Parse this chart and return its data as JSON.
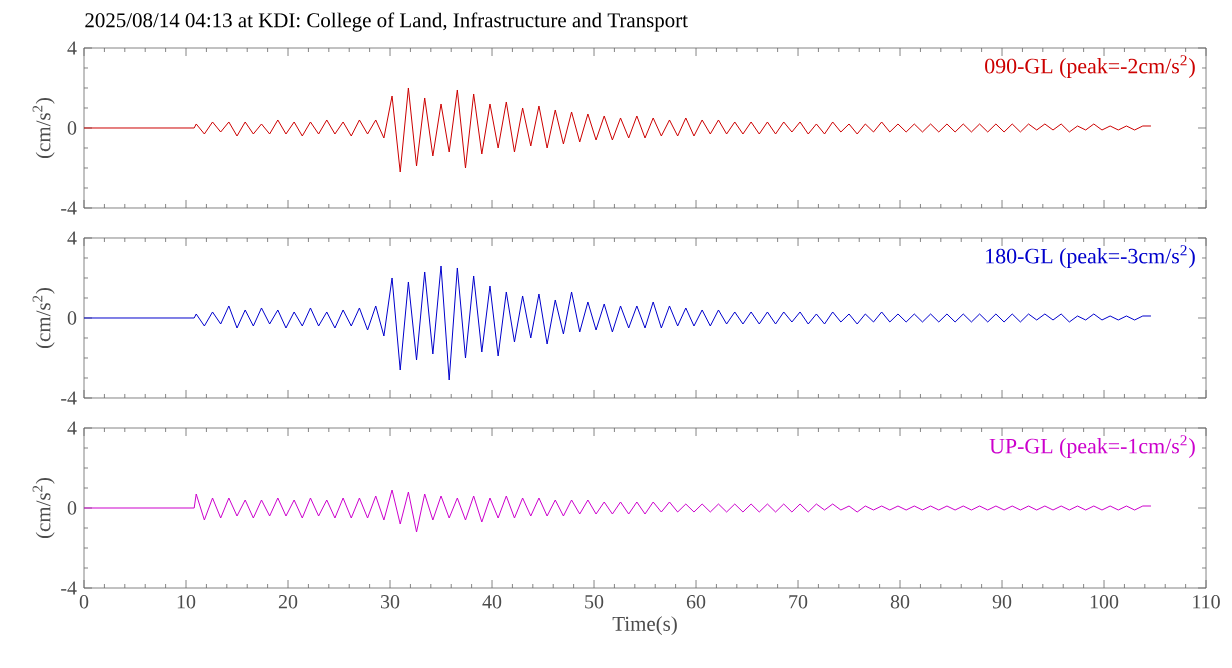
{
  "chart_data": [
    {
      "type": "line",
      "title": "2025/08/14 04:13 at KDI: College of Land, Infrastructure and Transport",
      "ylabel": "(cm/s$^{2}$)",
      "tick_labels": "y",
      "xlim": [
        0,
        110
      ],
      "xticks": [
        0,
        10,
        20,
        30,
        40,
        50,
        60,
        70,
        80,
        90,
        100,
        110
      ],
      "ylim": [
        -4,
        4
      ],
      "yticks": [
        -4,
        0,
        4
      ],
      "x": [
        0,
        10.8,
        11,
        11.8,
        12.6,
        13.4,
        14.2,
        15,
        15.8,
        16.6,
        17.4,
        18.2,
        19,
        19.8,
        20.6,
        21.4,
        22.2,
        23,
        23.8,
        24.6,
        25.4,
        26.2,
        27,
        27.8,
        28.6,
        29.4,
        30.2,
        31,
        31.8,
        32.6,
        33.4,
        34.2,
        35,
        35.8,
        36.6,
        37.4,
        38.2,
        39,
        39.8,
        40.6,
        41.4,
        42.2,
        43,
        43.8,
        44.6,
        45.4,
        46.2,
        47,
        47.8,
        48.6,
        49.4,
        50.2,
        51,
        51.8,
        52.6,
        53.4,
        54.2,
        55,
        55.8,
        56.6,
        57.4,
        58.2,
        59,
        59.8,
        60.6,
        61.4,
        62.2,
        63,
        63.8,
        64.6,
        65.4,
        66.2,
        67,
        67.8,
        68.6,
        69.4,
        70.2,
        71,
        71.8,
        72.6,
        73.4,
        74.2,
        75,
        75.8,
        76.6,
        77.4,
        78.2,
        79,
        79.8,
        80.6,
        81.4,
        82.2,
        83,
        83.8,
        84.6,
        85.4,
        86.2,
        87,
        87.8,
        88.6,
        89.4,
        90.2,
        91,
        91.8,
        92.6,
        93.4,
        94.2,
        95,
        95.8,
        96.6,
        97.4,
        98.2,
        99,
        99.8,
        100.6,
        101.4,
        102.2,
        103,
        103.8,
        104.6
      ],
      "series": [
        {
          "name": "090-GL (peak=-2cm/s$^{2}$)",
          "color": "#cc0000",
          "values": [
            0,
            0,
            0.2,
            -0.3,
            0.3,
            -0.2,
            0.3,
            -0.4,
            0.3,
            -0.3,
            0.2,
            -0.3,
            0.4,
            -0.3,
            0.3,
            -0.4,
            0.3,
            -0.3,
            0.4,
            -0.3,
            0.3,
            -0.4,
            0.4,
            -0.3,
            0.4,
            -0.5,
            1.6,
            -2.2,
            2.0,
            -1.9,
            1.5,
            -1.4,
            1.2,
            -1.2,
            1.9,
            -2.0,
            1.7,
            -1.3,
            1.2,
            -1.0,
            1.3,
            -1.2,
            1.0,
            -0.9,
            1.1,
            -1.0,
            0.9,
            -0.8,
            0.8,
            -0.7,
            0.7,
            -0.6,
            0.6,
            -0.6,
            0.5,
            -0.5,
            0.6,
            -0.5,
            0.5,
            -0.4,
            0.4,
            -0.4,
            0.5,
            -0.4,
            0.4,
            -0.3,
            0.4,
            -0.3,
            0.3,
            -0.3,
            0.3,
            -0.3,
            0.3,
            -0.3,
            0.3,
            -0.2,
            0.3,
            -0.3,
            0.2,
            -0.3,
            0.3,
            -0.2,
            0.2,
            -0.3,
            0.2,
            -0.2,
            0.3,
            -0.2,
            0.2,
            -0.2,
            0.2,
            -0.2,
            0.2,
            -0.2,
            0.2,
            -0.2,
            0.2,
            -0.2,
            0.2,
            -0.2,
            0.2,
            -0.2,
            0.2,
            -0.2,
            0.2,
            -0.1,
            0.2,
            -0.1,
            0.2,
            -0.2,
            0.1,
            -0.1,
            0.2,
            -0.1,
            0.1,
            -0.1,
            0.1,
            -0.1,
            0.1,
            0.1
          ]
        }
      ]
    },
    {
      "type": "line",
      "ylabel": "(cm/s$^{2}$)",
      "tick_labels": "y",
      "xlim": [
        0,
        110
      ],
      "xticks": [
        0,
        10,
        20,
        30,
        40,
        50,
        60,
        70,
        80,
        90,
        100,
        110
      ],
      "ylim": [
        -4,
        4
      ],
      "yticks": [
        -4,
        0,
        4
      ],
      "x": [
        0,
        10.8,
        11,
        11.8,
        12.6,
        13.4,
        14.2,
        15,
        15.8,
        16.6,
        17.4,
        18.2,
        19,
        19.8,
        20.6,
        21.4,
        22.2,
        23,
        23.8,
        24.6,
        25.4,
        26.2,
        27,
        27.8,
        28.6,
        29.4,
        30.2,
        31,
        31.8,
        32.6,
        33.4,
        34.2,
        35,
        35.8,
        36.6,
        37.4,
        38.2,
        39,
        39.8,
        40.6,
        41.4,
        42.2,
        43,
        43.8,
        44.6,
        45.4,
        46.2,
        47,
        47.8,
        48.6,
        49.4,
        50.2,
        51,
        51.8,
        52.6,
        53.4,
        54.2,
        55,
        55.8,
        56.6,
        57.4,
        58.2,
        59,
        59.8,
        60.6,
        61.4,
        62.2,
        63,
        63.8,
        64.6,
        65.4,
        66.2,
        67,
        67.8,
        68.6,
        69.4,
        70.2,
        71,
        71.8,
        72.6,
        73.4,
        74.2,
        75,
        75.8,
        76.6,
        77.4,
        78.2,
        79,
        79.8,
        80.6,
        81.4,
        82.2,
        83,
        83.8,
        84.6,
        85.4,
        86.2,
        87,
        87.8,
        88.6,
        89.4,
        90.2,
        91,
        91.8,
        92.6,
        93.4,
        94.2,
        95,
        95.8,
        96.6,
        97.4,
        98.2,
        99,
        99.8,
        100.6,
        101.4,
        102.2,
        103,
        103.8,
        104.6
      ],
      "series": [
        {
          "name": "180-GL (peak=-3cm/s$^{2}$)",
          "color": "#0000cc",
          "values": [
            0,
            0,
            0.2,
            -0.4,
            0.3,
            -0.3,
            0.6,
            -0.5,
            0.4,
            -0.4,
            0.5,
            -0.3,
            0.4,
            -0.5,
            0.3,
            -0.4,
            0.5,
            -0.4,
            0.3,
            -0.5,
            0.4,
            -0.4,
            0.5,
            -0.6,
            0.6,
            -0.9,
            2.0,
            -2.6,
            1.8,
            -2.1,
            2.3,
            -1.8,
            2.6,
            -3.1,
            2.5,
            -2.0,
            2.1,
            -1.7,
            1.6,
            -1.9,
            1.3,
            -1.2,
            1.1,
            -1.0,
            1.2,
            -1.3,
            0.9,
            -0.8,
            1.3,
            -0.7,
            0.8,
            -0.6,
            0.7,
            -0.7,
            0.6,
            -0.5,
            0.6,
            -0.5,
            0.8,
            -0.5,
            0.6,
            -0.4,
            0.5,
            -0.4,
            0.4,
            -0.4,
            0.4,
            -0.3,
            0.3,
            -0.3,
            0.3,
            -0.3,
            0.3,
            -0.3,
            0.3,
            -0.2,
            0.3,
            -0.3,
            0.2,
            -0.3,
            0.3,
            -0.2,
            0.2,
            -0.3,
            0.2,
            -0.2,
            0.3,
            -0.2,
            0.2,
            -0.2,
            0.2,
            -0.2,
            0.2,
            -0.2,
            0.2,
            -0.2,
            0.2,
            -0.2,
            0.2,
            -0.2,
            0.2,
            -0.2,
            0.2,
            -0.2,
            0.2,
            -0.1,
            0.2,
            -0.1,
            0.2,
            -0.2,
            0.1,
            -0.1,
            0.2,
            -0.1,
            0.1,
            -0.1,
            0.1,
            -0.1,
            0.1,
            0.1
          ]
        }
      ]
    },
    {
      "type": "line",
      "xlabel": "Time(s)",
      "ylabel": "(cm/s$^{2}$)",
      "xlim": [
        0,
        110
      ],
      "xticks": [
        0,
        10,
        20,
        30,
        40,
        50,
        60,
        70,
        80,
        90,
        100,
        110
      ],
      "ylim": [
        -4,
        4
      ],
      "yticks": [
        -4,
        0,
        4
      ],
      "x": [
        0,
        10.8,
        11,
        11.8,
        12.6,
        13.4,
        14.2,
        15,
        15.8,
        16.6,
        17.4,
        18.2,
        19,
        19.8,
        20.6,
        21.4,
        22.2,
        23,
        23.8,
        24.6,
        25.4,
        26.2,
        27,
        27.8,
        28.6,
        29.4,
        30.2,
        31,
        31.8,
        32.6,
        33.4,
        34.2,
        35,
        35.8,
        36.6,
        37.4,
        38.2,
        39,
        39.8,
        40.6,
        41.4,
        42.2,
        43,
        43.8,
        44.6,
        45.4,
        46.2,
        47,
        47.8,
        48.6,
        49.4,
        50.2,
        51,
        51.8,
        52.6,
        53.4,
        54.2,
        55,
        55.8,
        56.6,
        57.4,
        58.2,
        59,
        59.8,
        60.6,
        61.4,
        62.2,
        63,
        63.8,
        64.6,
        65.4,
        66.2,
        67,
        67.8,
        68.6,
        69.4,
        70.2,
        71,
        71.8,
        72.6,
        73.4,
        74.2,
        75,
        75.8,
        76.6,
        77.4,
        78.2,
        79,
        79.8,
        80.6,
        81.4,
        82.2,
        83,
        83.8,
        84.6,
        85.4,
        86.2,
        87,
        87.8,
        88.6,
        89.4,
        90.2,
        91,
        91.8,
        92.6,
        93.4,
        94.2,
        95,
        95.8,
        96.6,
        97.4,
        98.2,
        99,
        99.8,
        100.6,
        101.4,
        102.2,
        103,
        103.8,
        104.6
      ],
      "series": [
        {
          "name": "UP-GL (peak=-1cm/s$^{2}$)",
          "color": "#cc00cc",
          "values": [
            0,
            0,
            0.7,
            -0.6,
            0.5,
            -0.5,
            0.5,
            -0.4,
            0.4,
            -0.5,
            0.4,
            -0.4,
            0.5,
            -0.4,
            0.4,
            -0.5,
            0.5,
            -0.4,
            0.4,
            -0.5,
            0.5,
            -0.5,
            0.5,
            -0.5,
            0.6,
            -0.6,
            0.9,
            -0.8,
            0.8,
            -1.2,
            0.7,
            -0.6,
            0.6,
            -0.5,
            0.5,
            -0.6,
            0.6,
            -0.7,
            0.5,
            -0.5,
            0.6,
            -0.5,
            0.5,
            -0.4,
            0.5,
            -0.4,
            0.4,
            -0.4,
            0.4,
            -0.3,
            0.4,
            -0.3,
            0.3,
            -0.3,
            0.3,
            -0.3,
            0.3,
            -0.3,
            0.3,
            -0.2,
            0.3,
            -0.2,
            0.2,
            -0.2,
            0.2,
            -0.2,
            0.2,
            -0.2,
            0.2,
            -0.2,
            0.2,
            -0.2,
            0.2,
            -0.2,
            0.2,
            -0.2,
            0.2,
            -0.2,
            0.2,
            -0.1,
            0.2,
            -0.1,
            0.1,
            -0.2,
            0.1,
            -0.1,
            0.1,
            -0.1,
            0.1,
            -0.1,
            0.1,
            -0.1,
            0.1,
            -0.1,
            0.1,
            -0.1,
            0.1,
            -0.1,
            0.1,
            -0.1,
            0.1,
            -0.1,
            0.1,
            -0.1,
            0.1,
            -0.1,
            0.1,
            -0.1,
            0.1,
            -0.1,
            0.1,
            -0.1,
            0.1,
            -0.1,
            0.1,
            -0.1,
            0.1,
            -0.1,
            0.1,
            0.1
          ]
        }
      ]
    }
  ]
}
